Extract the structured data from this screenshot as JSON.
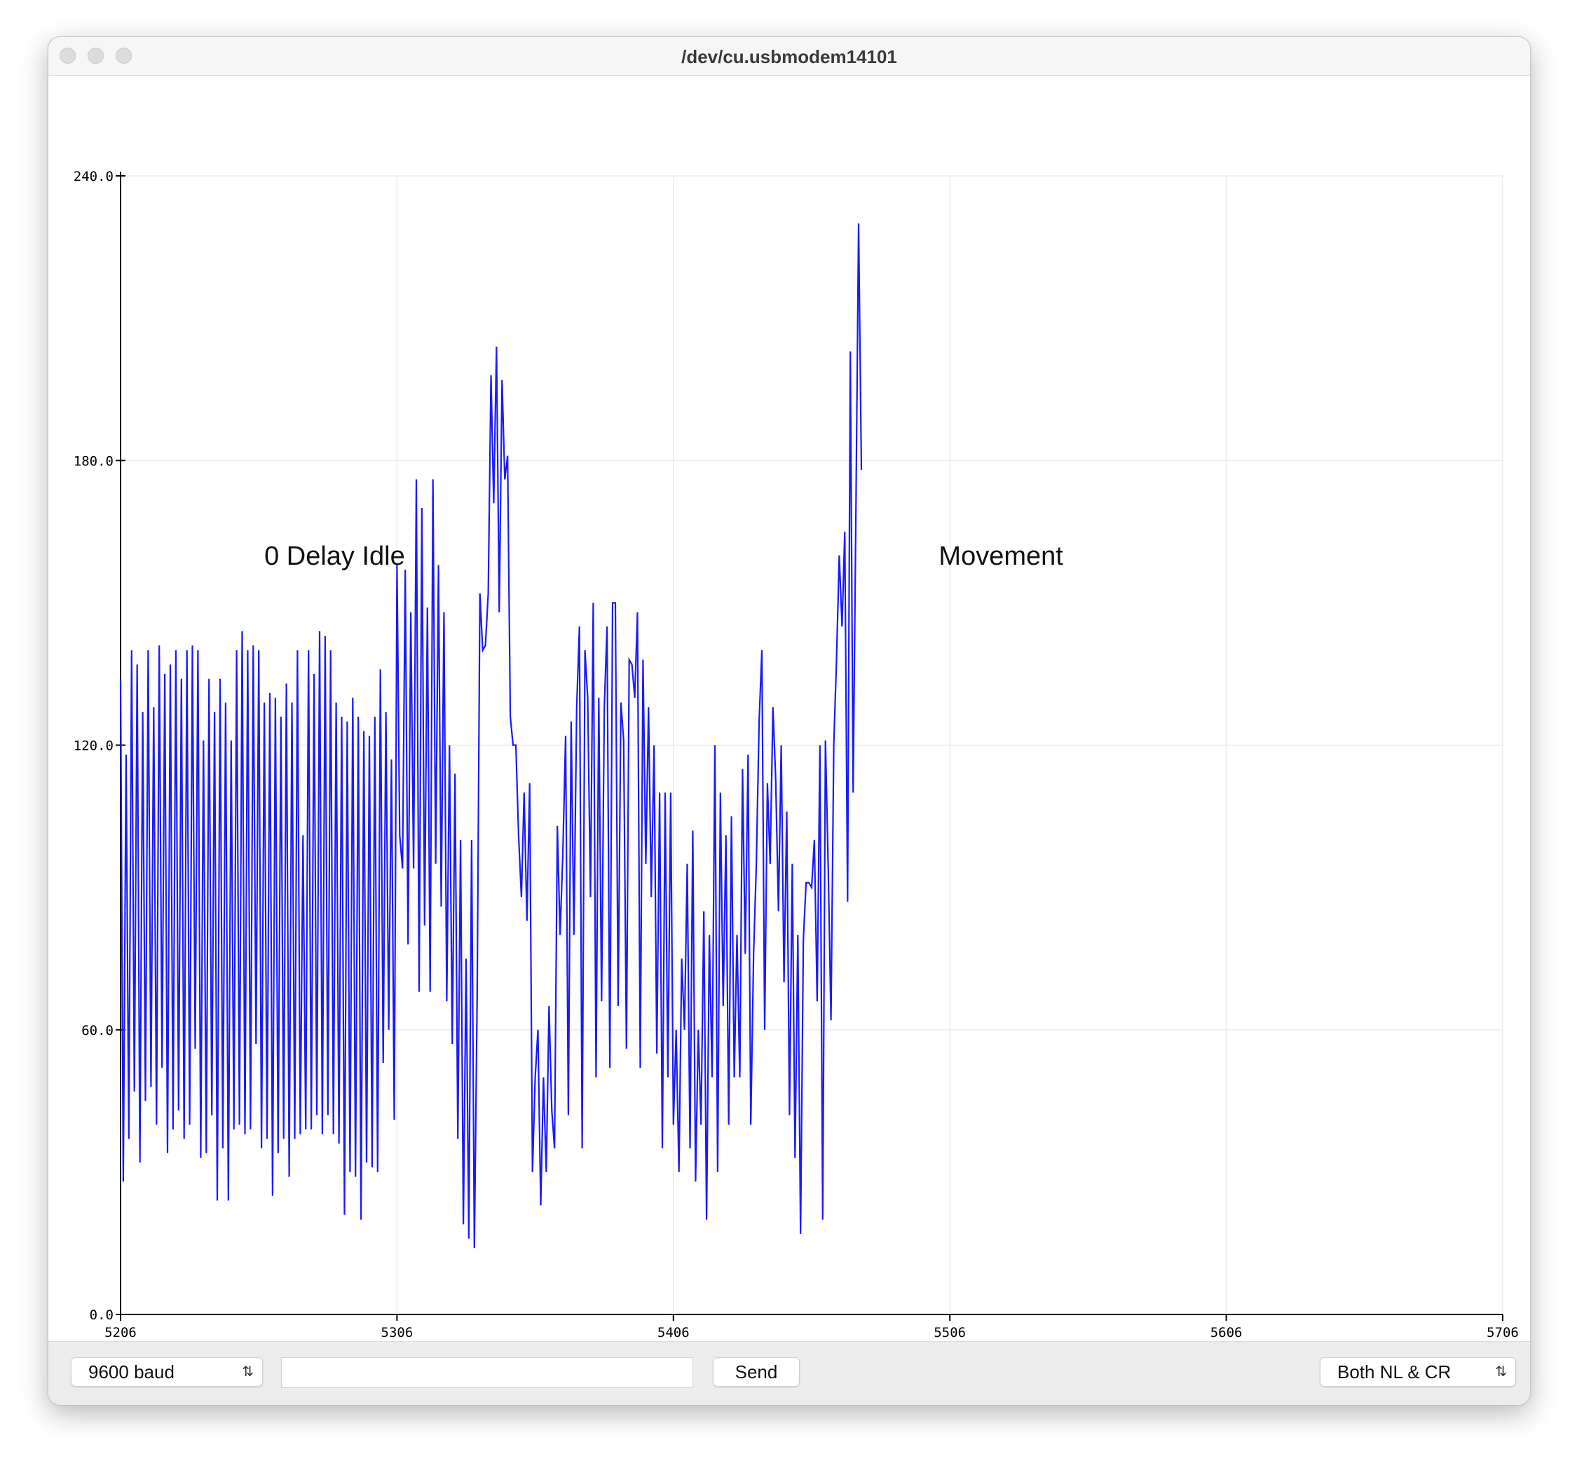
{
  "window": {
    "title": "/dev/cu.usbmodem14101"
  },
  "toolbar": {
    "baud_label": "9600 baud",
    "input_value": "",
    "send_label": "Send",
    "line_ending_label": "Both NL & CR"
  },
  "colors": {
    "line": "#1a1aff",
    "grid": "#ececec",
    "axis": "#000000"
  },
  "chart_data": {
    "type": "line",
    "title": "",
    "xlabel": "",
    "ylabel": "",
    "xlim": [
      5206,
      5706
    ],
    "ylim": [
      0,
      240
    ],
    "x_ticks": [
      5206,
      5306,
      5406,
      5506,
      5606,
      5706
    ],
    "y_ticks": [
      0,
      60,
      120,
      180,
      240
    ],
    "x_tick_labels": [
      "5206",
      "5306",
      "5406",
      "5506",
      "5606",
      "5706"
    ],
    "y_tick_labels": [
      "0.0",
      "60.0",
      "120.0",
      "180.0",
      "240.0"
    ],
    "grid": true,
    "annotations": [
      {
        "text": "0 Delay Idle",
        "x": 5258,
        "y": 158
      },
      {
        "text": "Movement",
        "x": 5502,
        "y": 158
      }
    ],
    "series": [
      {
        "x_start": 5206,
        "x_step": 1,
        "values": [
          134,
          28,
          118,
          37,
          140,
          47,
          137,
          32,
          127,
          45,
          140,
          48,
          128,
          40,
          141,
          52,
          135,
          34,
          137,
          39,
          140,
          43,
          134,
          37,
          140,
          40,
          141,
          56,
          140,
          33,
          121,
          34,
          134,
          42,
          127,
          24,
          134,
          35,
          129,
          24,
          121,
          39,
          140,
          40,
          144,
          38,
          140,
          39,
          141,
          57,
          140,
          35,
          129,
          37,
          131,
          25,
          130,
          34,
          126,
          37,
          133,
          29,
          129,
          37,
          140,
          38,
          101,
          39,
          140,
          39,
          135,
          42,
          144,
          38,
          143,
          42,
          140,
          38,
          129,
          36,
          126,
          21,
          125,
          30,
          130,
          29,
          126,
          20,
          123,
          32,
          122,
          31,
          126,
          30,
          136,
          53,
          127,
          60,
          117,
          41,
          158,
          101,
          94,
          157,
          78,
          148,
          94,
          176,
          68,
          170,
          82,
          149,
          68,
          176,
          95,
          158,
          86,
          148,
          66,
          120,
          57,
          114,
          37,
          100,
          19,
          75,
          16,
          100,
          14,
          67,
          152,
          140,
          141,
          152,
          198,
          171,
          204,
          148,
          197,
          176,
          181,
          126,
          120,
          120,
          101,
          88,
          110,
          83,
          112,
          30,
          50,
          60,
          23,
          50,
          30,
          65,
          43,
          35,
          103,
          80,
          97,
          122,
          42,
          125,
          80,
          128,
          145,
          35,
          140,
          130,
          88,
          150,
          50,
          130,
          66,
          128,
          145,
          52,
          150,
          150,
          65,
          129,
          121,
          56,
          138,
          137,
          130,
          148,
          52,
          138,
          95,
          128,
          88,
          120,
          55,
          110,
          35,
          110,
          50,
          110,
          40,
          60,
          30,
          75,
          60,
          95,
          35,
          102,
          28,
          60,
          40,
          85,
          20,
          80,
          50,
          120,
          30,
          110,
          65,
          101,
          40,
          105,
          50,
          80,
          50,
          115,
          76,
          118,
          40,
          76,
          95,
          125,
          140,
          60,
          112,
          95,
          128,
          113,
          85,
          120,
          70,
          106,
          42,
          95,
          33,
          80,
          17,
          79,
          91,
          91,
          90,
          100,
          66,
          120,
          20,
          121,
          94,
          62,
          120,
          138,
          160,
          145,
          165,
          87,
          203,
          110,
          168,
          230,
          178
        ]
      }
    ]
  }
}
